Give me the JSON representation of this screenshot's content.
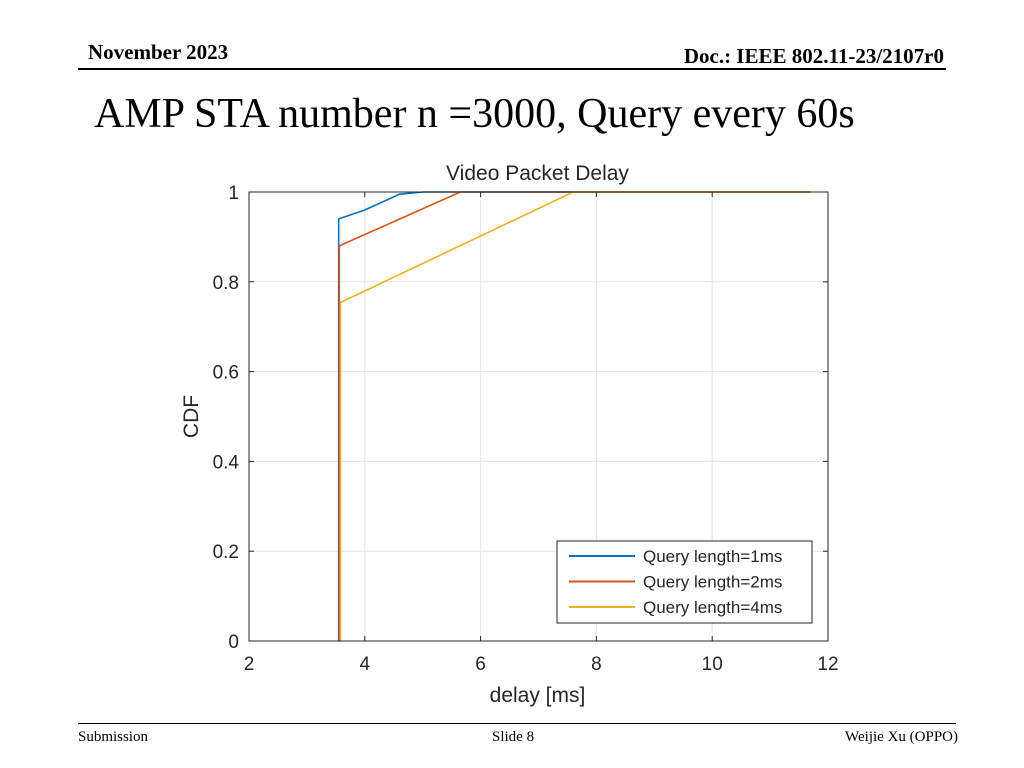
{
  "header": {
    "date": "November 2023",
    "doc": "Doc.: IEEE 802.11-23/2107r0"
  },
  "slide": {
    "title": "AMP STA number n =3000, Query every 60s"
  },
  "footer": {
    "left": "Submission",
    "center": "Slide 8",
    "right": "Weijie Xu (OPPO)"
  },
  "chart_data": {
    "type": "line",
    "title": "Video Packet Delay",
    "xlabel": "delay [ms]",
    "ylabel": "CDF",
    "xlim": [
      2,
      12
    ],
    "ylim": [
      0,
      1
    ],
    "xticks": [
      "2",
      "4",
      "6",
      "8",
      "10",
      "12"
    ],
    "yticks": [
      "0",
      "0.2",
      "0.4",
      "0.6",
      "0.8",
      "1"
    ],
    "grid": true,
    "legend_position": "bottom-right",
    "series": [
      {
        "name": "Query length=1ms",
        "color": "#0072BD",
        "points": [
          [
            3.55,
            0
          ],
          [
            3.55,
            0.94
          ],
          [
            4.0,
            0.96
          ],
          [
            4.6,
            0.995
          ],
          [
            5.0,
            1.0
          ],
          [
            11.7,
            1.0
          ]
        ]
      },
      {
        "name": "Query length=2ms",
        "color": "#D95319",
        "points": [
          [
            3.56,
            0
          ],
          [
            3.56,
            0.88
          ],
          [
            5.65,
            1.0
          ],
          [
            11.7,
            1.0
          ]
        ]
      },
      {
        "name": "Query length=4ms",
        "color": "#EDB120",
        "points": [
          [
            3.58,
            0
          ],
          [
            3.58,
            0.755
          ],
          [
            3.6,
            0.755
          ],
          [
            7.6,
            1.0
          ],
          [
            11.7,
            1.0
          ]
        ]
      }
    ]
  }
}
